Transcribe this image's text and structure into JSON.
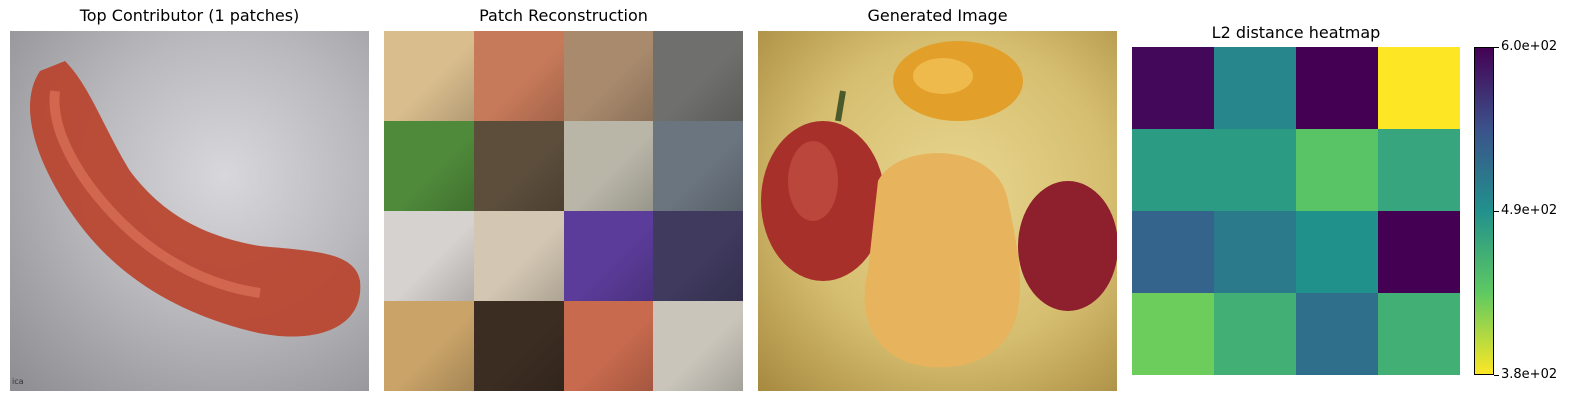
{
  "panels": {
    "top_contributor": {
      "title": "Top Contributor (1 patches)",
      "watermark": "ica"
    },
    "patch_reconstruction": {
      "title": "Patch Reconstruction",
      "patch_colors": [
        "#d9bd8d",
        "#c77a5a",
        "#a98a6d",
        "#6f6f6d",
        "#4f8a3a",
        "#5d4e3c",
        "#b9b6a8",
        "#6b7580",
        "#d6d2cf",
        "#d3c7b3",
        "#5b3c9a",
        "#3f3a5e",
        "#c9a368",
        "#3c2d22",
        "#c86a4e",
        "#c9c5bb"
      ]
    },
    "generated_image": {
      "title": "Generated Image"
    }
  },
  "chart_data": {
    "type": "heatmap",
    "title": "L2 distance heatmap",
    "xlabel": "",
    "ylabel": "",
    "rows": 4,
    "cols": 4,
    "values": [
      [
        595,
        500,
        600,
        380
      ],
      [
        480,
        480,
        440,
        470
      ],
      [
        530,
        510,
        490,
        600
      ],
      [
        430,
        460,
        520,
        460
      ]
    ],
    "vmin": 380,
    "vmax": 600,
    "colormap": "viridis_r",
    "colorbar": {
      "tick_labels": [
        "6.0e+02",
        "4.9e+02",
        "3.8e+02"
      ],
      "tick_values": [
        600,
        490,
        380
      ]
    }
  }
}
